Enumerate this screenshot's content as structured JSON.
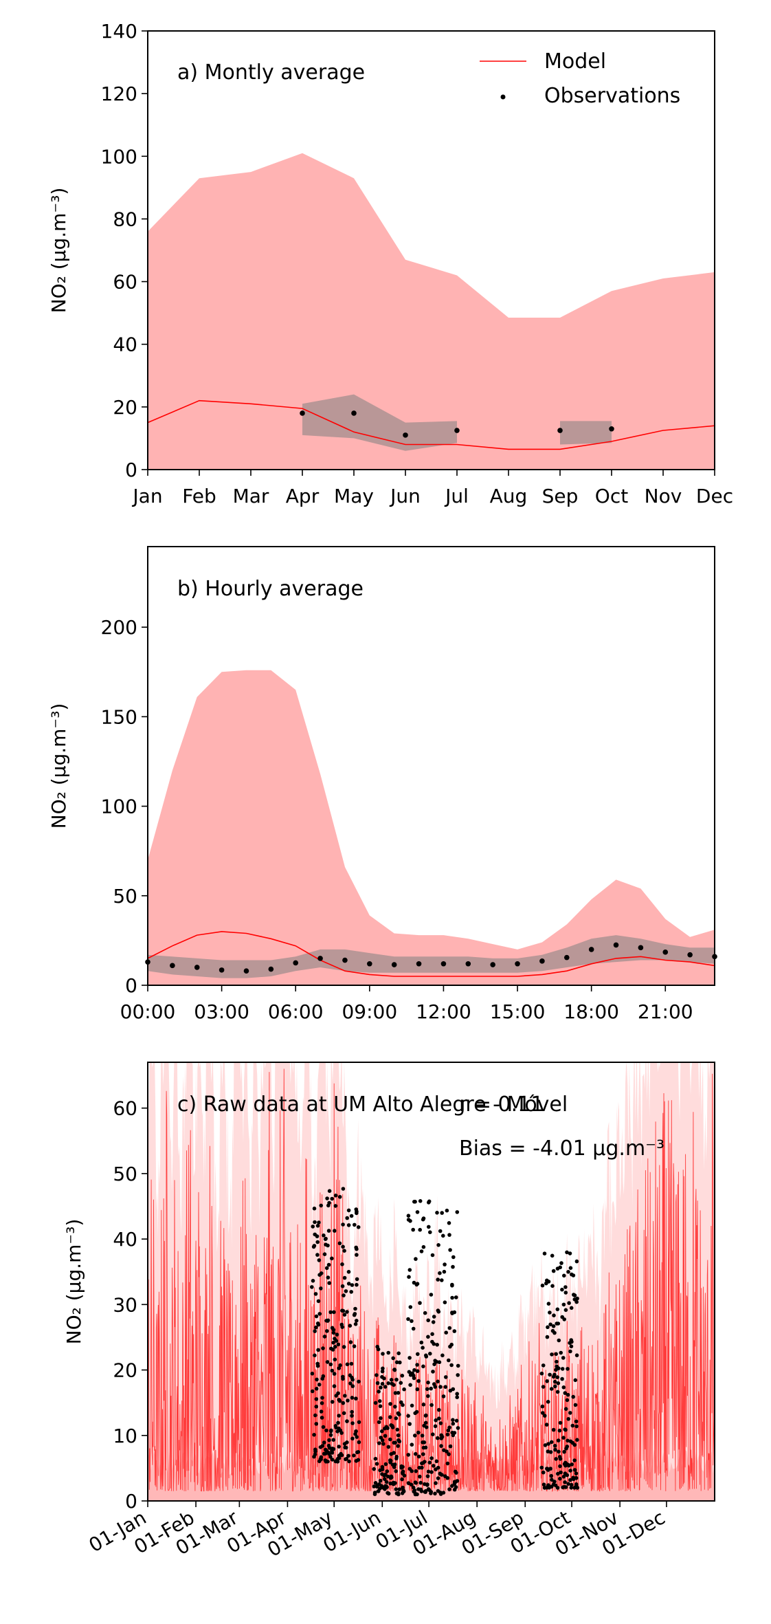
{
  "chart_data": [
    {
      "type": "area",
      "panel_label": "a) Montly average",
      "ylabel": "NO₂ (μg.m⁻³)",
      "ylim": [
        0,
        140
      ],
      "yticks": [
        0,
        20,
        40,
        60,
        80,
        100,
        120,
        140
      ],
      "x_ticks": [
        "Jan",
        "Feb",
        "Mar",
        "Apr",
        "May",
        "Jun",
        "Jul",
        "Aug",
        "Sep",
        "Oct",
        "Nov",
        "Dec"
      ],
      "legend": {
        "placement": "top-right",
        "model_label": "Model",
        "obs_label": "Observations"
      },
      "model_band_upper": [
        76,
        93,
        95,
        101,
        93,
        67,
        62,
        48.5,
        48.5,
        57,
        61,
        63
      ],
      "model_band_lower": [
        0,
        0,
        0,
        0,
        0,
        0,
        0,
        0,
        0,
        0,
        0,
        0
      ],
      "model_line": [
        15,
        22,
        21,
        19.5,
        12,
        8,
        8,
        6.5,
        6.5,
        9,
        12.5,
        14
      ],
      "obs_band": [
        {
          "x": [
            3,
            4,
            5,
            6
          ],
          "upper": [
            21,
            24,
            15,
            15.5
          ],
          "lower": [
            11,
            10,
            6,
            8.5
          ]
        },
        {
          "x": [
            8,
            9
          ],
          "upper": [
            15.5,
            15.5
          ],
          "lower": [
            8,
            8.5
          ]
        }
      ],
      "obs_points": [
        {
          "x": 3,
          "y": 18
        },
        {
          "x": 4,
          "y": 18
        },
        {
          "x": 5,
          "y": 11
        },
        {
          "x": 6,
          "y": 12.5
        },
        {
          "x": 8,
          "y": 12.5
        },
        {
          "x": 9,
          "y": 13
        }
      ],
      "colors": {
        "model_band": "#ffb3b3",
        "model_line": "#ff0000",
        "obs_band": "#808080",
        "obs": "#000000"
      }
    },
    {
      "type": "area",
      "panel_label": "b) Hourly average",
      "ylabel": "NO₂ (μg.m⁻³)",
      "ylim": [
        0,
        245
      ],
      "yticks": [
        0,
        50,
        100,
        150,
        200
      ],
      "x_ticks": [
        "00:00",
        "03:00",
        "06:00",
        "09:00",
        "12:00",
        "15:00",
        "18:00",
        "21:00"
      ],
      "x_tick_hours": [
        0,
        3,
        6,
        9,
        12,
        15,
        18,
        21
      ],
      "xlim": [
        0,
        23
      ],
      "model_band_upper": [
        70,
        120,
        161,
        175,
        176,
        176,
        165,
        118,
        66,
        39,
        29,
        28,
        28,
        26,
        23,
        20,
        24,
        34,
        48,
        59,
        54,
        37,
        27,
        31
      ],
      "model_band_lower": [
        0,
        0,
        0,
        0,
        0,
        0,
        0,
        0,
        0,
        0,
        0,
        0,
        0,
        0,
        0,
        0,
        0,
        0,
        0,
        0,
        0,
        0,
        0,
        0
      ],
      "model_line": [
        15,
        22,
        28,
        30,
        29,
        26,
        22,
        14,
        8,
        6,
        5,
        5,
        5,
        5,
        5,
        5,
        6,
        8,
        12,
        15,
        16,
        14,
        13,
        11
      ],
      "obs_band_upper": [
        17,
        16,
        15,
        14,
        14,
        14,
        16,
        20,
        20,
        18,
        16,
        16,
        16,
        16,
        15,
        15,
        17,
        21,
        26,
        28,
        26,
        23,
        21,
        21
      ],
      "obs_band_lower": [
        8,
        6,
        5,
        4,
        4,
        5,
        8,
        10,
        8,
        7,
        7,
        7,
        7,
        7,
        7,
        7,
        8,
        10,
        12,
        13,
        14,
        14,
        13,
        12
      ],
      "obs_points": [
        13,
        11,
        10,
        8.5,
        8,
        9,
        12.5,
        15,
        14,
        12,
        11.5,
        12,
        12,
        12,
        11.5,
        12,
        13.5,
        15.5,
        20,
        22.5,
        21,
        18.5,
        17,
        16
      ],
      "colors": {
        "model_band": "#ffb3b3",
        "model_line": "#ff0000",
        "obs_band": "#808080",
        "obs": "#000000"
      }
    },
    {
      "type": "scatter",
      "panel_label": "c) Raw data at UM Alto Alegre - Móvel",
      "stat_r": "r = 0.11",
      "stat_bias": "Bias = -4.01 μg.m⁻³",
      "ylabel": "NO₂ (μg.m⁻³)",
      "ylim": [
        0,
        67
      ],
      "yticks": [
        0,
        10,
        20,
        30,
        40,
        50,
        60
      ],
      "x_ticks": [
        "01-Jan",
        "01-Feb",
        "01-Mar",
        "01-Apr",
        "01-May",
        "01-Jun",
        "01-Jul",
        "01-Aug",
        "01-Sep",
        "01-Oct",
        "01-Nov",
        "01-Dec"
      ],
      "x_tick_days": [
        0,
        31,
        59,
        90,
        120,
        151,
        181,
        212,
        243,
        273,
        304,
        334
      ],
      "xlim": [
        0,
        365
      ],
      "model_series_day_of_year": [
        0,
        3,
        6,
        9,
        12,
        15,
        18,
        21,
        24,
        27,
        30,
        33,
        36,
        39,
        42,
        45,
        48,
        51,
        54,
        57,
        60,
        63,
        66,
        69,
        72,
        75,
        78,
        81,
        84,
        87,
        90,
        93,
        96,
        99,
        102,
        105,
        108,
        111,
        114,
        117,
        120,
        123,
        126,
        129,
        132,
        135,
        138,
        141,
        144,
        147,
        150,
        153,
        156,
        159,
        162,
        165,
        168,
        171,
        174,
        177,
        180,
        183,
        186,
        189,
        192,
        195,
        198,
        201,
        204,
        207,
        210,
        213,
        216,
        219,
        222,
        225,
        228,
        231,
        234,
        237,
        240,
        243,
        246,
        249,
        252,
        255,
        258,
        261,
        264,
        267,
        270,
        273,
        276,
        279,
        282,
        285,
        288,
        291,
        294,
        297,
        300,
        303,
        306,
        309,
        312,
        315,
        318,
        321,
        324,
        327,
        330,
        333,
        336,
        339,
        342,
        345,
        348,
        351,
        354,
        357,
        360,
        363
      ],
      "model_series_max": [
        42,
        55,
        30,
        48,
        67,
        35,
        60,
        28,
        50,
        67,
        40,
        58,
        33,
        67,
        45,
        25,
        52,
        38,
        30,
        67,
        44,
        55,
        29,
        62,
        36,
        48,
        67,
        40,
        55,
        67,
        60,
        45,
        52,
        35,
        58,
        40,
        30,
        67,
        48,
        38,
        67,
        55,
        44,
        30,
        25,
        36,
        33,
        28,
        22,
        30,
        26,
        20,
        24,
        28,
        18,
        22,
        16,
        20,
        24,
        18,
        26,
        22,
        30,
        20,
        18,
        24,
        16,
        22,
        15,
        20,
        18,
        14,
        16,
        12,
        14,
        12,
        15,
        13,
        16,
        14,
        20,
        18,
        24,
        22,
        26,
        20,
        18,
        24,
        22,
        18,
        26,
        22,
        20,
        28,
        24,
        30,
        26,
        22,
        30,
        35,
        28,
        40,
        33,
        45,
        38,
        50,
        44,
        55,
        48,
        60,
        52,
        67,
        58,
        67,
        50,
        62,
        45,
        67,
        55,
        48,
        40,
        67
      ],
      "obs_windows": [
        {
          "start_day": 106,
          "end_day": 136,
          "max": 48,
          "min": 6
        },
        {
          "start_day": 146,
          "end_day": 165,
          "max": 24,
          "min": 1
        },
        {
          "start_day": 168,
          "end_day": 200,
          "max": 46,
          "min": 1
        },
        {
          "start_day": 254,
          "end_day": 277,
          "max": 38,
          "min": 2
        }
      ],
      "colors": {
        "model_band": "#ffdcdc",
        "model_line": "#ff2020",
        "obs": "#000000"
      }
    }
  ]
}
